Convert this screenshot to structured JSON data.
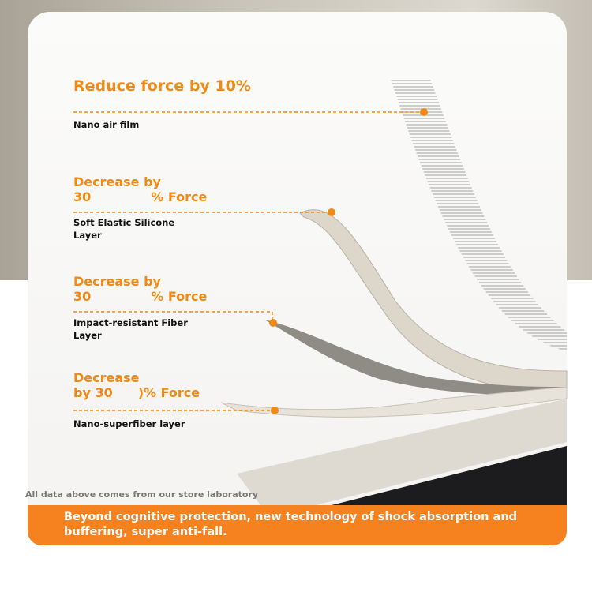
{
  "layers": [
    {
      "heading": "Reduce force by 10%",
      "label": "Nano air film"
    },
    {
      "heading_line1": "Decrease by",
      "heading_line2": "30",
      "heading_suffix": "% Force",
      "label_line1": "Soft Elastic Silicone",
      "label_line2": "Layer"
    },
    {
      "heading_line1": "Decrease by",
      "heading_line2": "30",
      "heading_suffix": "% Force",
      "label_line1": "Impact-resistant Fiber",
      "label_line2": "Layer"
    },
    {
      "heading_line1": "Decrease",
      "heading_line2": "by 30",
      "heading_suffix": ")% Force",
      "label": "Nano-superfiber layer"
    }
  ],
  "footnote": "All data above comes from our store laboratory",
  "banner": "Beyond cognitive protection, new technology of shock absorption and buffering, super anti-fall.",
  "colors": {
    "accent": "#f5821f",
    "text": "#111111"
  }
}
